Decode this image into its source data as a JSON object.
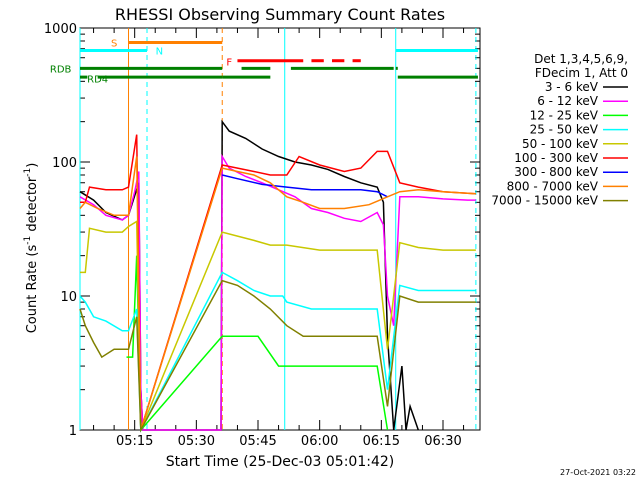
{
  "chart_data": {
    "type": "line",
    "title": "RHESSI Observing Summary Count Rates",
    "xlabel": "Start Time (25-Dec-03 05:01:42)",
    "ylabel_main": "Count Rate (s",
    "ylabel_sup1": "-1",
    "ylabel_mid": " detector",
    "ylabel_sup2": "-1",
    "ylabel_end": ")",
    "y_scale": "log",
    "ylim": [
      1,
      1000
    ],
    "xlim_minutes": [
      301.7,
      399.0
    ],
    "x_ticks": [
      {
        "value": 315,
        "label": "05:15"
      },
      {
        "value": 330,
        "label": "05:30"
      },
      {
        "value": 345,
        "label": "05:45"
      },
      {
        "value": 360,
        "label": "06:00"
      },
      {
        "value": 375,
        "label": "06:15"
      },
      {
        "value": 390,
        "label": "06:30"
      }
    ],
    "y_ticks": [
      {
        "value": 1,
        "label": "1"
      },
      {
        "value": 10,
        "label": "10"
      },
      {
        "value": 100,
        "label": "100"
      },
      {
        "value": 1000,
        "label": "1000"
      }
    ],
    "legend_header": [
      "Det 1,3,4,5,6,9,",
      "FDecim 1, Att 0"
    ],
    "legend_position": "right",
    "series": [
      {
        "name": "3 - 6 keV",
        "color": "#000000",
        "points": [
          [
            301.7,
            60
          ],
          [
            305,
            52
          ],
          [
            308,
            42
          ],
          [
            312,
            37
          ],
          [
            313.5,
            40
          ],
          [
            315,
            56
          ],
          [
            316,
            70
          ],
          [
            316.5,
            2
          ],
          [
            317,
            1
          ],
          [
            336,
            1
          ],
          [
            336.3,
            200
          ],
          [
            338,
            170
          ],
          [
            342,
            150
          ],
          [
            346,
            125
          ],
          [
            350,
            110
          ],
          [
            354,
            100
          ],
          [
            358,
            95
          ],
          [
            362,
            88
          ],
          [
            366,
            78
          ],
          [
            370,
            70
          ],
          [
            374,
            65
          ],
          [
            375.5,
            50
          ],
          [
            376.5,
            5
          ],
          [
            378,
            1
          ],
          [
            380,
            3
          ],
          [
            381,
            1
          ],
          [
            382,
            1.5
          ],
          [
            384,
            1
          ]
        ]
      },
      {
        "name": "6 - 12 keV",
        "color": "#ff00ff",
        "points": [
          [
            301.7,
            55
          ],
          [
            305,
            48
          ],
          [
            308,
            40
          ],
          [
            312,
            37
          ],
          [
            313.5,
            40
          ],
          [
            315,
            60
          ],
          [
            316,
            85
          ],
          [
            316.5,
            2
          ],
          [
            317,
            1
          ],
          [
            336,
            1
          ],
          [
            336.3,
            110
          ],
          [
            338,
            90
          ],
          [
            342,
            78
          ],
          [
            346,
            70
          ],
          [
            350,
            62
          ],
          [
            354,
            55
          ],
          [
            358,
            45
          ],
          [
            362,
            42
          ],
          [
            366,
            38
          ],
          [
            370,
            36
          ],
          [
            374,
            42
          ],
          [
            375.5,
            34
          ],
          [
            376.5,
            10
          ],
          [
            378,
            6
          ],
          [
            379.5,
            55
          ],
          [
            384,
            55
          ],
          [
            390,
            53
          ],
          [
            396,
            52
          ],
          [
            398,
            52
          ]
        ]
      },
      {
        "name": "12 - 25 keV",
        "color": "#00ff00",
        "points": [
          [
            313,
            3.5
          ],
          [
            314.5,
            3.5
          ],
          [
            315.5,
            20
          ],
          [
            316.5,
            1
          ],
          [
            336.3,
            5
          ],
          [
            345,
            5
          ],
          [
            350,
            3
          ],
          [
            356,
            3
          ],
          [
            362,
            3
          ],
          [
            368,
            3
          ],
          [
            374,
            3
          ],
          [
            376.5,
            1
          ]
        ]
      },
      {
        "name": "25 - 50 keV",
        "color": "#00ffff",
        "points": [
          [
            301.7,
            10
          ],
          [
            303,
            9
          ],
          [
            305,
            7
          ],
          [
            308,
            6.5
          ],
          [
            312,
            5.5
          ],
          [
            313.5,
            5.5
          ],
          [
            315.5,
            8
          ],
          [
            316.5,
            1
          ],
          [
            336.3,
            15
          ],
          [
            340,
            13
          ],
          [
            344,
            11
          ],
          [
            348,
            10
          ],
          [
            351,
            10
          ],
          [
            352,
            9
          ],
          [
            358,
            8
          ],
          [
            366,
            8
          ],
          [
            374,
            8
          ],
          [
            376.5,
            2
          ],
          [
            379.5,
            12
          ],
          [
            384,
            11
          ],
          [
            390,
            11
          ],
          [
            398,
            11
          ]
        ]
      },
      {
        "name": "50 - 100 keV",
        "color": "#c8c800",
        "points": [
          [
            301.7,
            15
          ],
          [
            303,
            15
          ],
          [
            304,
            32
          ],
          [
            308,
            30
          ],
          [
            312,
            30
          ],
          [
            313.5,
            33
          ],
          [
            315.5,
            36
          ],
          [
            316.5,
            1
          ],
          [
            336.3,
            30
          ],
          [
            340,
            28
          ],
          [
            344,
            26
          ],
          [
            348,
            24
          ],
          [
            352,
            24
          ],
          [
            360,
            22
          ],
          [
            368,
            22
          ],
          [
            374,
            22
          ],
          [
            376.5,
            4
          ],
          [
            379.5,
            25
          ],
          [
            384,
            23
          ],
          [
            390,
            22
          ],
          [
            398,
            22
          ]
        ]
      },
      {
        "name": "100 - 300 keV",
        "color": "#ff0000",
        "points": [
          [
            301.7,
            50
          ],
          [
            303,
            50
          ],
          [
            304,
            65
          ],
          [
            308,
            62
          ],
          [
            312,
            62
          ],
          [
            313.5,
            65
          ],
          [
            315.5,
            160
          ],
          [
            316.5,
            1
          ],
          [
            336.3,
            95
          ],
          [
            340,
            90
          ],
          [
            344,
            85
          ],
          [
            348,
            80
          ],
          [
            352,
            80
          ],
          [
            355,
            110
          ],
          [
            360,
            95
          ],
          [
            366,
            85
          ],
          [
            370,
            90
          ],
          [
            374,
            120
          ],
          [
            376.5,
            120
          ],
          [
            379.5,
            70
          ],
          [
            384,
            65
          ],
          [
            390,
            60
          ],
          [
            398,
            58
          ]
        ]
      },
      {
        "name": "300 - 800 keV",
        "color": "#0000ff",
        "points": [
          [
            336.3,
            80
          ],
          [
            340,
            75
          ],
          [
            346,
            68
          ],
          [
            352,
            65
          ],
          [
            358,
            62
          ],
          [
            364,
            62
          ],
          [
            370,
            62
          ],
          [
            374,
            60
          ],
          [
            376.5,
            55
          ]
        ]
      },
      {
        "name": "800 - 7000 keV",
        "color": "#ff8000",
        "points": [
          [
            301.7,
            45
          ],
          [
            303,
            50
          ],
          [
            306,
            45
          ],
          [
            310,
            40
          ],
          [
            313.5,
            40
          ],
          [
            315.5,
            110
          ],
          [
            316.5,
            1
          ],
          [
            336.3,
            90
          ],
          [
            340,
            85
          ],
          [
            344,
            80
          ],
          [
            348,
            70
          ],
          [
            352,
            55
          ],
          [
            356,
            50
          ],
          [
            360,
            45
          ],
          [
            366,
            45
          ],
          [
            372,
            48
          ],
          [
            376.5,
            55
          ],
          [
            379.5,
            60
          ],
          [
            384,
            62
          ],
          [
            390,
            60
          ],
          [
            398,
            58
          ]
        ]
      },
      {
        "name": "7000 - 15000 keV",
        "color": "#808000",
        "points": [
          [
            301.7,
            8
          ],
          [
            303,
            6
          ],
          [
            305,
            4.5
          ],
          [
            307,
            3.5
          ],
          [
            310,
            4
          ],
          [
            313.5,
            4
          ],
          [
            315.5,
            7
          ],
          [
            316.5,
            1
          ],
          [
            336.3,
            13
          ],
          [
            340,
            12
          ],
          [
            344,
            10
          ],
          [
            348,
            8
          ],
          [
            352,
            6
          ],
          [
            356,
            5
          ],
          [
            362,
            5
          ],
          [
            368,
            5
          ],
          [
            374,
            5
          ],
          [
            376.5,
            1.5
          ],
          [
            379.5,
            10
          ],
          [
            384,
            9
          ],
          [
            390,
            9
          ],
          [
            398,
            9
          ]
        ]
      }
    ],
    "annotations": [
      {
        "label": "S",
        "color": "#ff8000",
        "y": 780,
        "x_start": 313.5,
        "x_end": 336.3,
        "label_x": 310,
        "label_y": 780
      },
      {
        "label": "N",
        "color": "#00ffff",
        "y": 680,
        "x_start": 301.7,
        "x_end": 318.0,
        "label_x": 321,
        "label_y": 680
      },
      {
        "label": "F",
        "color": "#ff0000",
        "y": 560,
        "label_x": 338,
        "label_y": 560
      },
      {
        "label": "RDB",
        "color": "#008000",
        "y": 500,
        "label_x": 297,
        "label_y": 500
      },
      {
        "label": "RD4",
        "color": "#008000",
        "y": 420,
        "label_x": 306,
        "label_y": 420
      }
    ],
    "flag_bars": [
      {
        "color": "#00ffff",
        "y": 680,
        "segments": [
          [
            301.7,
            318.0
          ],
          [
            378.5,
            398.5
          ]
        ]
      },
      {
        "color": "#ff8000",
        "y": 780,
        "segments": [
          [
            313.5,
            336.3
          ]
        ]
      },
      {
        "color": "#ff0000",
        "y": 570,
        "segments": [
          [
            340,
            356
          ],
          [
            358,
            361
          ],
          [
            363,
            366
          ],
          [
            368,
            370
          ]
        ]
      },
      {
        "color": "#008000",
        "y": 500,
        "segments": [
          [
            301.7,
            336.3
          ],
          [
            341,
            348
          ],
          [
            353,
            378
          ],
          [
            378.5,
            379
          ]
        ]
      },
      {
        "color": "#008000",
        "y": 430,
        "segments": [
          [
            301.7,
            303.5
          ],
          [
            306,
            336.3
          ],
          [
            336.3,
            348
          ],
          [
            379,
            398.5
          ]
        ]
      }
    ],
    "vertical_lines": [
      {
        "x": 301.7,
        "color": "#00ffff",
        "style": "solid"
      },
      {
        "x": 318.0,
        "color": "#00ffff",
        "style": "dash"
      },
      {
        "x": 313.5,
        "color": "#ff8000",
        "style": "solid"
      },
      {
        "x": 336.3,
        "color": "#ff8000",
        "style": "dash"
      },
      {
        "x": 351.5,
        "color": "#00ffff",
        "style": "solid"
      },
      {
        "x": 378.5,
        "color": "#00ffff",
        "style": "solid"
      },
      {
        "x": 398.0,
        "color": "#00ffff",
        "style": "dash"
      }
    ]
  },
  "footer": {
    "timestamp": "27-Oct-2021 03:22"
  }
}
